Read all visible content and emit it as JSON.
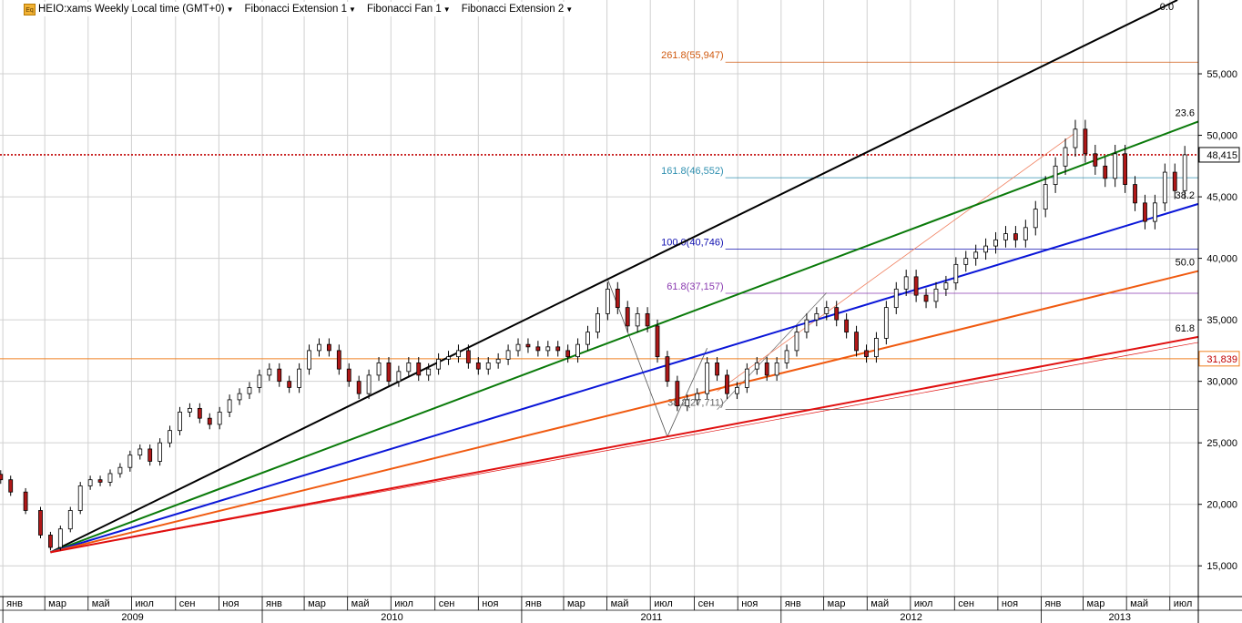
{
  "toolbar": {
    "icon": "Eq",
    "symbol_label": "HEIO:xams Weekly Local time (GMT+0)",
    "tools": [
      "Fibonacci Extension 1",
      "Fibonacci Fan 1",
      "Fibonacci Extension 2"
    ]
  },
  "colors": {
    "background": "#ffffff",
    "grid": "#d0d0d0",
    "up_candle": "#ffffff",
    "down_candle": "#b01818",
    "fan_0": "#000000",
    "fan_23_6": "#0a7a0a",
    "fan_38_2": "#0a16d8",
    "fan_50": "#f05a10",
    "fan_61_8": "#e01010",
    "current_price_line": "#c00000",
    "price_box": "#000000",
    "hline_31839": "#f08020"
  },
  "chart_data": {
    "type": "candlestick",
    "title": "HEIO:xams Weekly Local time (GMT+0)",
    "ylim": [
      12500,
      61000
    ],
    "y_ticks": [
      15000,
      20000,
      25000,
      30000,
      35000,
      40000,
      45000,
      50000,
      55000
    ],
    "y_tick_labels": [
      "15,000",
      "20,000",
      "25,000",
      "30,000",
      "35,000",
      "40,000",
      "45,000",
      "50,000",
      "55,000"
    ],
    "x_range": [
      "2008-12-28",
      "2013-08-10"
    ],
    "month_ticks": [
      {
        "date": "2009-01-01",
        "label": "янв"
      },
      {
        "date": "2009-03-01",
        "label": "мар"
      },
      {
        "date": "2009-05-01",
        "label": "май"
      },
      {
        "date": "2009-07-01",
        "label": "июл"
      },
      {
        "date": "2009-09-01",
        "label": "сен"
      },
      {
        "date": "2009-11-01",
        "label": "ноя"
      },
      {
        "date": "2010-01-01",
        "label": "янв"
      },
      {
        "date": "2010-03-01",
        "label": "мар"
      },
      {
        "date": "2010-05-01",
        "label": "май"
      },
      {
        "date": "2010-07-01",
        "label": "июл"
      },
      {
        "date": "2010-09-01",
        "label": "сен"
      },
      {
        "date": "2010-11-01",
        "label": "ноя"
      },
      {
        "date": "2011-01-01",
        "label": "янв"
      },
      {
        "date": "2011-03-01",
        "label": "мар"
      },
      {
        "date": "2011-05-01",
        "label": "май"
      },
      {
        "date": "2011-07-01",
        "label": "июл"
      },
      {
        "date": "2011-09-01",
        "label": "сен"
      },
      {
        "date": "2011-11-01",
        "label": "ноя"
      },
      {
        "date": "2012-01-01",
        "label": "янв"
      },
      {
        "date": "2012-03-01",
        "label": "мар"
      },
      {
        "date": "2012-05-01",
        "label": "май"
      },
      {
        "date": "2012-07-01",
        "label": "июл"
      },
      {
        "date": "2012-09-01",
        "label": "сен"
      },
      {
        "date": "2012-11-01",
        "label": "ноя"
      },
      {
        "date": "2013-01-01",
        "label": "янв"
      },
      {
        "date": "2013-03-01",
        "label": "мар"
      },
      {
        "date": "2013-05-01",
        "label": "май"
      },
      {
        "date": "2013-07-01",
        "label": "июл"
      }
    ],
    "year_ticks": [
      {
        "date": "2009-01-01",
        "label": "2009"
      },
      {
        "date": "2010-01-01",
        "label": "2010"
      },
      {
        "date": "2011-01-01",
        "label": "2011"
      },
      {
        "date": "2012-01-01",
        "label": "2012"
      },
      {
        "date": "2013-01-01",
        "label": "2013"
      }
    ],
    "price_series": [
      [
        "2008-12-29",
        22000
      ],
      [
        "2009-01-12",
        21000
      ],
      [
        "2009-02-02",
        19500
      ],
      [
        "2009-02-23",
        17500
      ],
      [
        "2009-03-09",
        16500
      ],
      [
        "2009-03-23",
        18000
      ],
      [
        "2009-04-06",
        19500
      ],
      [
        "2009-04-20",
        21500
      ],
      [
        "2009-05-04",
        22000
      ],
      [
        "2009-05-18",
        21800
      ],
      [
        "2009-06-01",
        22500
      ],
      [
        "2009-06-15",
        23000
      ],
      [
        "2009-06-29",
        24000
      ],
      [
        "2009-07-13",
        24500
      ],
      [
        "2009-07-27",
        23500
      ],
      [
        "2009-08-10",
        25000
      ],
      [
        "2009-08-24",
        26000
      ],
      [
        "2009-09-07",
        27500
      ],
      [
        "2009-09-21",
        27800
      ],
      [
        "2009-10-05",
        27000
      ],
      [
        "2009-10-19",
        26500
      ],
      [
        "2009-11-02",
        27500
      ],
      [
        "2009-11-16",
        28500
      ],
      [
        "2009-11-30",
        29000
      ],
      [
        "2009-12-14",
        29500
      ],
      [
        "2009-12-28",
        30500
      ],
      [
        "2010-01-11",
        31000
      ],
      [
        "2010-01-25",
        30000
      ],
      [
        "2010-02-08",
        29500
      ],
      [
        "2010-02-22",
        31000
      ],
      [
        "2010-03-08",
        32500
      ],
      [
        "2010-03-22",
        33000
      ],
      [
        "2010-04-05",
        32500
      ],
      [
        "2010-04-19",
        31000
      ],
      [
        "2010-05-03",
        30000
      ],
      [
        "2010-05-17",
        29000
      ],
      [
        "2010-05-31",
        30500
      ],
      [
        "2010-06-14",
        31500
      ],
      [
        "2010-06-28",
        30000
      ],
      [
        "2010-07-12",
        30800
      ],
      [
        "2010-07-26",
        31500
      ],
      [
        "2010-08-09",
        30500
      ],
      [
        "2010-08-23",
        31000
      ],
      [
        "2010-09-06",
        31800
      ],
      [
        "2010-09-20",
        32000
      ],
      [
        "2010-10-04",
        32500
      ],
      [
        "2010-10-18",
        31500
      ],
      [
        "2010-11-01",
        31000
      ],
      [
        "2010-11-15",
        31500
      ],
      [
        "2010-11-29",
        31800
      ],
      [
        "2010-12-13",
        32500
      ],
      [
        "2010-12-27",
        33000
      ],
      [
        "2011-01-10",
        32800
      ],
      [
        "2011-01-24",
        32500
      ],
      [
        "2011-02-07",
        32800
      ],
      [
        "2011-02-21",
        32500
      ],
      [
        "2011-03-07",
        32000
      ],
      [
        "2011-03-21",
        33000
      ],
      [
        "2011-04-04",
        34000
      ],
      [
        "2011-04-18",
        35500
      ],
      [
        "2011-05-02",
        37500
      ],
      [
        "2011-05-16",
        36000
      ],
      [
        "2011-05-30",
        34500
      ],
      [
        "2011-06-13",
        35500
      ],
      [
        "2011-06-27",
        34500
      ],
      [
        "2011-07-11",
        32000
      ],
      [
        "2011-07-25",
        30000
      ],
      [
        "2011-08-08",
        28000
      ],
      [
        "2011-08-22",
        28500
      ],
      [
        "2011-09-05",
        29000
      ],
      [
        "2011-09-19",
        31500
      ],
      [
        "2011-10-03",
        30500
      ],
      [
        "2011-10-17",
        29000
      ],
      [
        "2011-10-31",
        29500
      ],
      [
        "2011-11-14",
        31000
      ],
      [
        "2011-11-28",
        31500
      ],
      [
        "2011-12-12",
        30500
      ],
      [
        "2011-12-26",
        31500
      ],
      [
        "2012-01-09",
        32500
      ],
      [
        "2012-01-23",
        34000
      ],
      [
        "2012-02-06",
        35000
      ],
      [
        "2012-02-20",
        35500
      ],
      [
        "2012-03-05",
        36000
      ],
      [
        "2012-03-19",
        35000
      ],
      [
        "2012-04-02",
        34000
      ],
      [
        "2012-04-16",
        32500
      ],
      [
        "2012-04-30",
        32000
      ],
      [
        "2012-05-14",
        33500
      ],
      [
        "2012-05-28",
        36000
      ],
      [
        "2012-06-11",
        37500
      ],
      [
        "2012-06-25",
        38500
      ],
      [
        "2012-07-09",
        37000
      ],
      [
        "2012-07-23",
        36500
      ],
      [
        "2012-08-06",
        37500
      ],
      [
        "2012-08-20",
        38000
      ],
      [
        "2012-09-03",
        39500
      ],
      [
        "2012-09-17",
        40000
      ],
      [
        "2012-10-01",
        40500
      ],
      [
        "2012-10-15",
        41000
      ],
      [
        "2012-10-29",
        41500
      ],
      [
        "2012-11-12",
        42000
      ],
      [
        "2012-11-26",
        41500
      ],
      [
        "2012-12-10",
        42500
      ],
      [
        "2012-12-24",
        44000
      ],
      [
        "2013-01-07",
        46000
      ],
      [
        "2013-01-21",
        47500
      ],
      [
        "2013-02-04",
        49000
      ],
      [
        "2013-02-18",
        50500
      ],
      [
        "2013-03-04",
        48500
      ],
      [
        "2013-03-18",
        47500
      ],
      [
        "2013-04-01",
        46500
      ],
      [
        "2013-04-15",
        48500
      ],
      [
        "2013-04-29",
        46000
      ],
      [
        "2013-05-13",
        44500
      ],
      [
        "2013-05-27",
        43000
      ],
      [
        "2013-06-10",
        44500
      ],
      [
        "2013-06-24",
        47000
      ],
      [
        "2013-07-08",
        45500
      ],
      [
        "2013-07-22",
        48415
      ]
    ],
    "current_price": 48415,
    "current_price_label": "48,415",
    "horizontal_level": 31839,
    "horizontal_level_label": "31,839",
    "fib_fan": {
      "anchor": [
        "2009-03-09",
        16100
      ],
      "rays": [
        {
          "label": "0.0",
          "through": [
            "2011-05-02",
            38300
          ],
          "color": "#000000"
        },
        {
          "label": "23.6",
          "through": [
            "2011-05-02",
            33100
          ],
          "color": "#0a7a0a"
        },
        {
          "label": "38.2",
          "through": [
            "2011-05-02",
            29850
          ],
          "color": "#0a16d8"
        },
        {
          "label": "50.0",
          "through": [
            "2011-05-02",
            27200
          ],
          "color": "#f05a10"
        },
        {
          "label": "61.8",
          "through": [
            "2011-05-02",
            24600
          ],
          "color": "#e01010"
        }
      ]
    },
    "fib_extension_1": {
      "points": [
        [
          "2011-05-02",
          38300
        ],
        [
          "2011-07-25",
          25500
        ],
        [
          "2011-09-19",
          32700
        ]
      ],
      "levels": [
        {
          "label": "38.2(27,711)",
          "value": 27711,
          "color": "#666666"
        },
        {
          "label": "61.8(37,157)",
          "value": 37157,
          "color": "#8a3ab0"
        },
        {
          "label": "100.0(40,746)",
          "value": 40746,
          "color": "#1010b0"
        },
        {
          "label": "161.8(46,552)",
          "value": 46552,
          "color": "#3090b0"
        },
        {
          "label": "261.8(55,947)",
          "value": 55947,
          "color": "#d05a10"
        }
      ]
    },
    "fib_extension_2": {
      "points": [
        [
          "2011-10-03",
          27700
        ],
        [
          "2012-03-05",
          37200
        ],
        [
          "2013-02-18",
          50200
        ]
      ]
    }
  }
}
